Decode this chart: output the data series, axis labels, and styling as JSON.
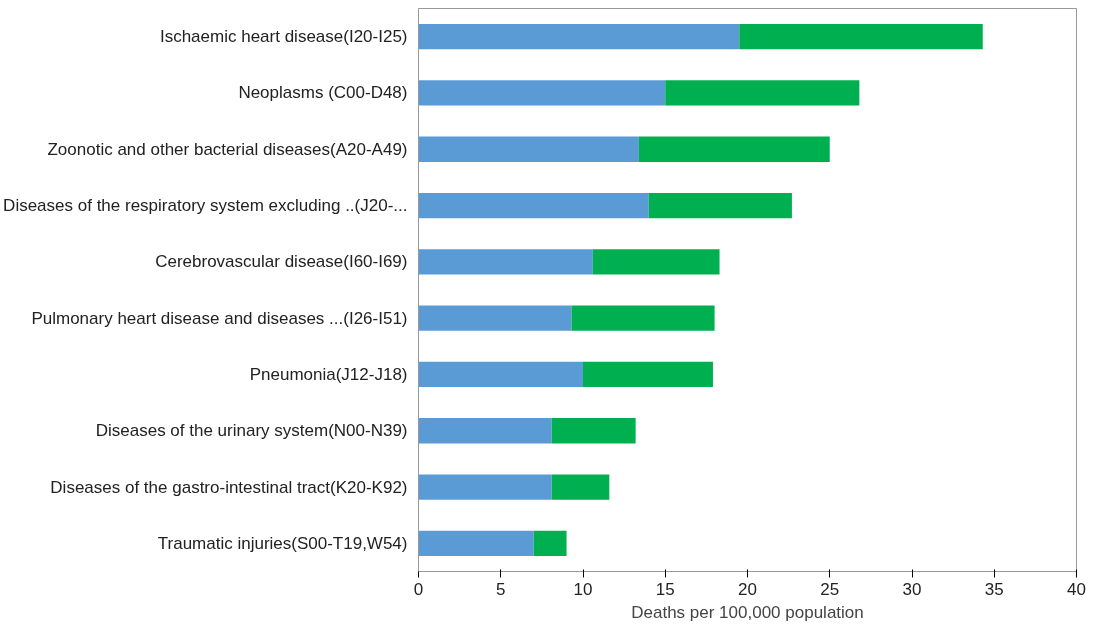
{
  "chart_data": {
    "type": "bar",
    "orientation": "horizontal",
    "stacked": true,
    "xlabel": "Deaths per 100,000 population",
    "categories": [
      "Ischaemic heart disease(I20-I25)",
      "Neoplasms (C00-D48)",
      "Zoonotic and other bacterial diseases(A20-A49)",
      "Diseases of the respiratory system excluding ..(J20-...",
      "Cerebrovascular disease(I60-I69)",
      "Pulmonary heart disease and diseases ...(I26-I51)",
      "Pneumonia(J12-J18)",
      "Diseases of the urinary system(N00-N39)",
      "Diseases of the gastro-intestinal tract(K20-K92)",
      "Traumatic injuries(S00-T19,W54)"
    ],
    "series": [
      {
        "color": "#5b9bd5",
        "values": [
          19.5,
          15.0,
          13.4,
          14.0,
          10.6,
          9.3,
          10.0,
          8.1,
          8.1,
          7.0
        ]
      },
      {
        "color": "#00b050",
        "values": [
          14.8,
          11.8,
          11.6,
          8.7,
          7.7,
          8.7,
          7.9,
          5.1,
          3.5,
          2.0
        ]
      }
    ],
    "xlim": [
      0,
      40
    ],
    "xticks": [
      0,
      5,
      10,
      15,
      20,
      25,
      30,
      35,
      40
    ],
    "grid": false
  }
}
